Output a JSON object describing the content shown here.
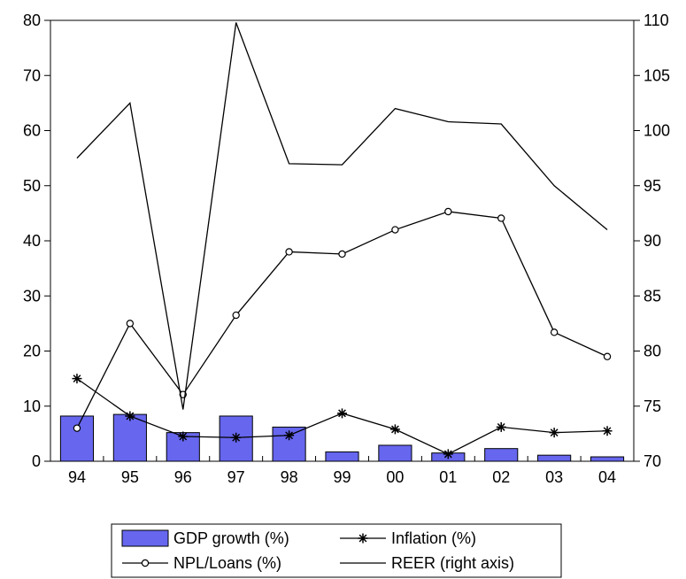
{
  "chart_data": {
    "type": "bar+line",
    "title": "",
    "xlabel": "",
    "ylabel": "",
    "categories": [
      "94",
      "95",
      "96",
      "97",
      "98",
      "99",
      "00",
      "01",
      "02",
      "03",
      "04"
    ],
    "left_axis": {
      "ylim": [
        0,
        80
      ],
      "ticks": [
        0,
        10,
        20,
        30,
        40,
        50,
        60,
        70,
        80
      ]
    },
    "right_axis": {
      "ylim": [
        70,
        110
      ],
      "ticks": [
        70,
        75,
        80,
        85,
        90,
        95,
        100,
        105,
        110
      ]
    },
    "series": [
      {
        "name": "GDP growth (%)",
        "kind": "bar",
        "axis": "left",
        "color": "#6666ee",
        "values": [
          8.2,
          8.5,
          5.2,
          8.2,
          6.2,
          1.7,
          2.9,
          1.5,
          2.3,
          1.1,
          0.8
        ]
      },
      {
        "name": "Inflation (%)",
        "kind": "line",
        "marker": "star",
        "axis": "left",
        "color": "#000000",
        "values": [
          15.0,
          8.2,
          4.5,
          4.3,
          4.7,
          8.7,
          5.8,
          1.3,
          6.2,
          5.2,
          5.5
        ]
      },
      {
        "name": "NPL/Loans (%)",
        "kind": "line",
        "marker": "circle",
        "axis": "left",
        "color": "#000000",
        "values": [
          6.0,
          25.0,
          12.1,
          26.5,
          38.0,
          37.6,
          42.0,
          45.3,
          44.1,
          23.4,
          19.0
        ]
      },
      {
        "name": "REER (right axis)",
        "kind": "line",
        "marker": "none",
        "axis": "right",
        "color": "#000000",
        "values": [
          97.5,
          102.5,
          74.7,
          109.8,
          97.0,
          96.9,
          102.0,
          100.8,
          100.6,
          95.0,
          91.0
        ]
      }
    ],
    "legend": {
      "placement": "bottom-center",
      "entries": [
        "GDP growth (%)",
        "Inflation (%)",
        "NPL/Loans (%)",
        "REER (right axis)"
      ]
    },
    "grid": false
  }
}
